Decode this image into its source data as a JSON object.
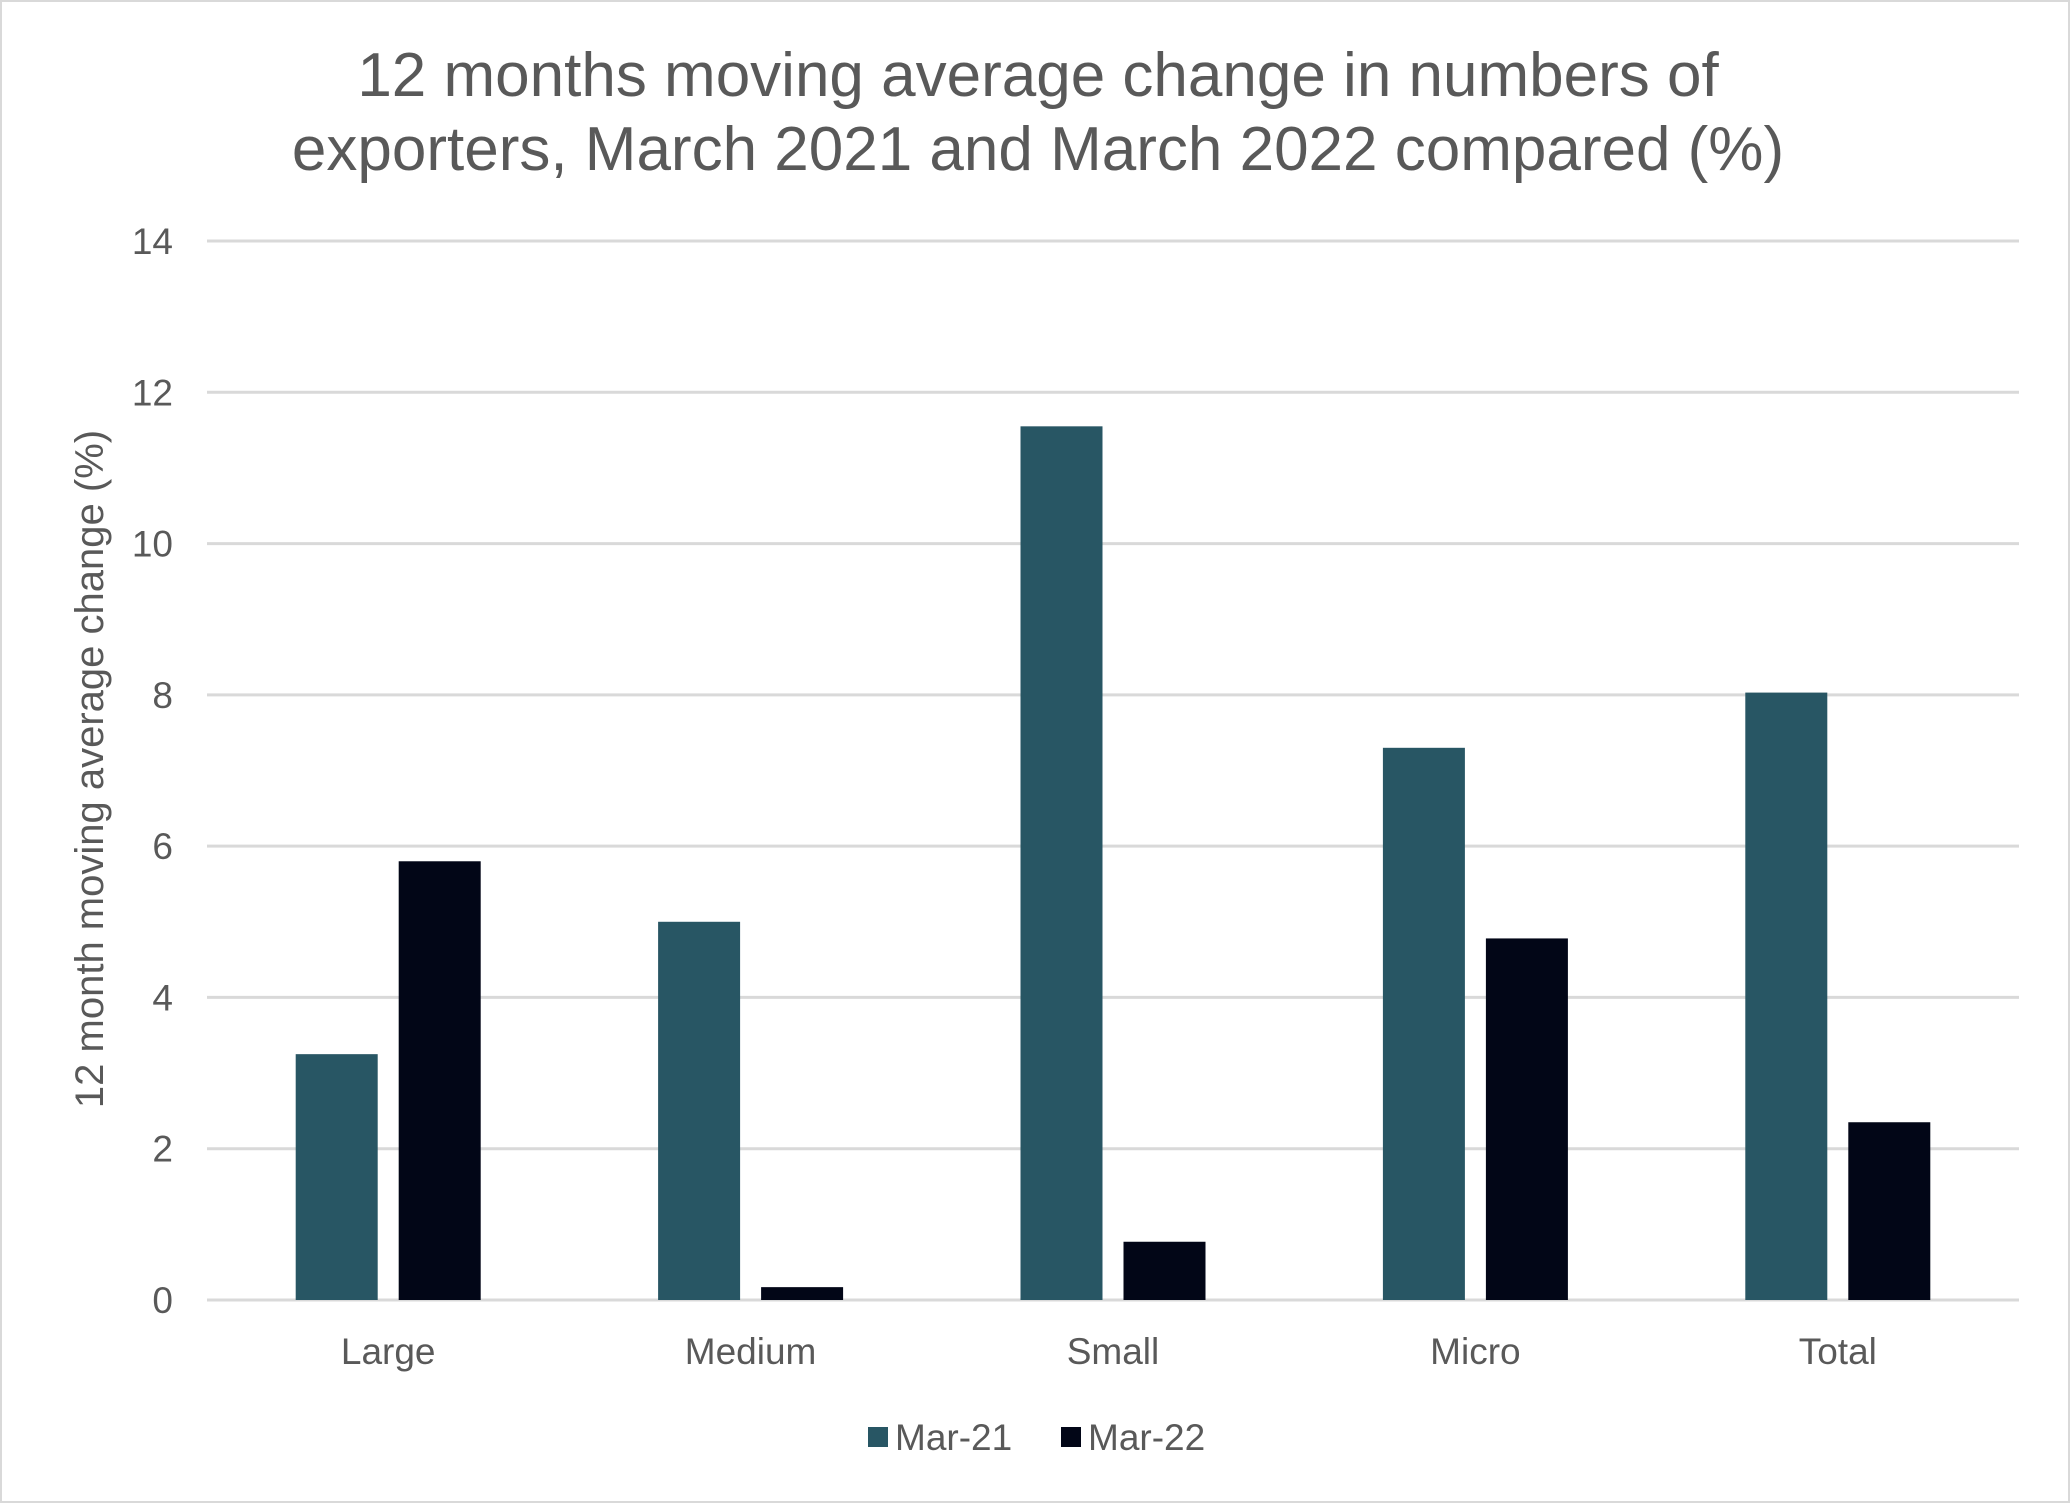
{
  "chart_data": {
    "type": "bar",
    "title_lines": [
      "12 months moving average change in numbers of",
      "exporters, March 2021 and March 2022 compared (%)"
    ],
    "xlabel": "",
    "ylabel": "12 month moving average change (%)",
    "categories": [
      "Large",
      "Medium",
      "Small",
      "Micro",
      "Total"
    ],
    "series": [
      {
        "name": "Mar-21",
        "color": "#285664",
        "values": [
          3.25,
          5.0,
          11.55,
          7.3,
          8.03
        ]
      },
      {
        "name": "Mar-22",
        "color": "#020617",
        "values": [
          5.8,
          0.17,
          0.77,
          4.78,
          2.35
        ]
      }
    ],
    "ylim": [
      0,
      14
    ],
    "yticks": [
      0,
      2,
      4,
      6,
      8,
      10,
      12,
      14
    ],
    "grid": true,
    "legend_position": "bottom-center",
    "colors": {
      "title": "#595959",
      "text": "#595959",
      "gridline": "#d9d9d9",
      "frame": "#d9d9d9"
    }
  }
}
